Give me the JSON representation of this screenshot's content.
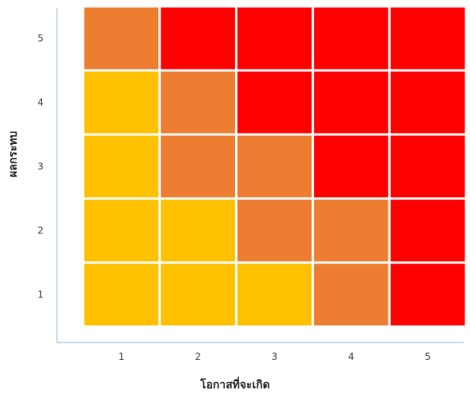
{
  "chart_data": {
    "type": "heatmap",
    "title": "",
    "xlabel": "โอกาสที่จะเกิด",
    "ylabel": "ผลกระทบ",
    "x_categories": [
      "1",
      "2",
      "3",
      "4",
      "5"
    ],
    "y_categories": [
      "1",
      "2",
      "3",
      "4",
      "5"
    ],
    "levels": {
      "medium": "#FFC000",
      "high": "#ED7D31",
      "very_high": "#FF0000"
    },
    "grid": [
      {
        "y": "5",
        "cells": [
          "high",
          "very_high",
          "very_high",
          "very_high",
          "very_high"
        ]
      },
      {
        "y": "4",
        "cells": [
          "medium",
          "high",
          "very_high",
          "very_high",
          "very_high"
        ]
      },
      {
        "y": "3",
        "cells": [
          "medium",
          "high",
          "high",
          "very_high",
          "very_high"
        ]
      },
      {
        "y": "2",
        "cells": [
          "medium",
          "medium",
          "high",
          "high",
          "very_high"
        ]
      },
      {
        "y": "1",
        "cells": [
          "medium",
          "medium",
          "medium",
          "high",
          "very_high"
        ]
      }
    ],
    "axis_color": "#A6C8E6",
    "cell_border_color": "#FFFFFF",
    "grid_lines": false,
    "legend": "none"
  }
}
